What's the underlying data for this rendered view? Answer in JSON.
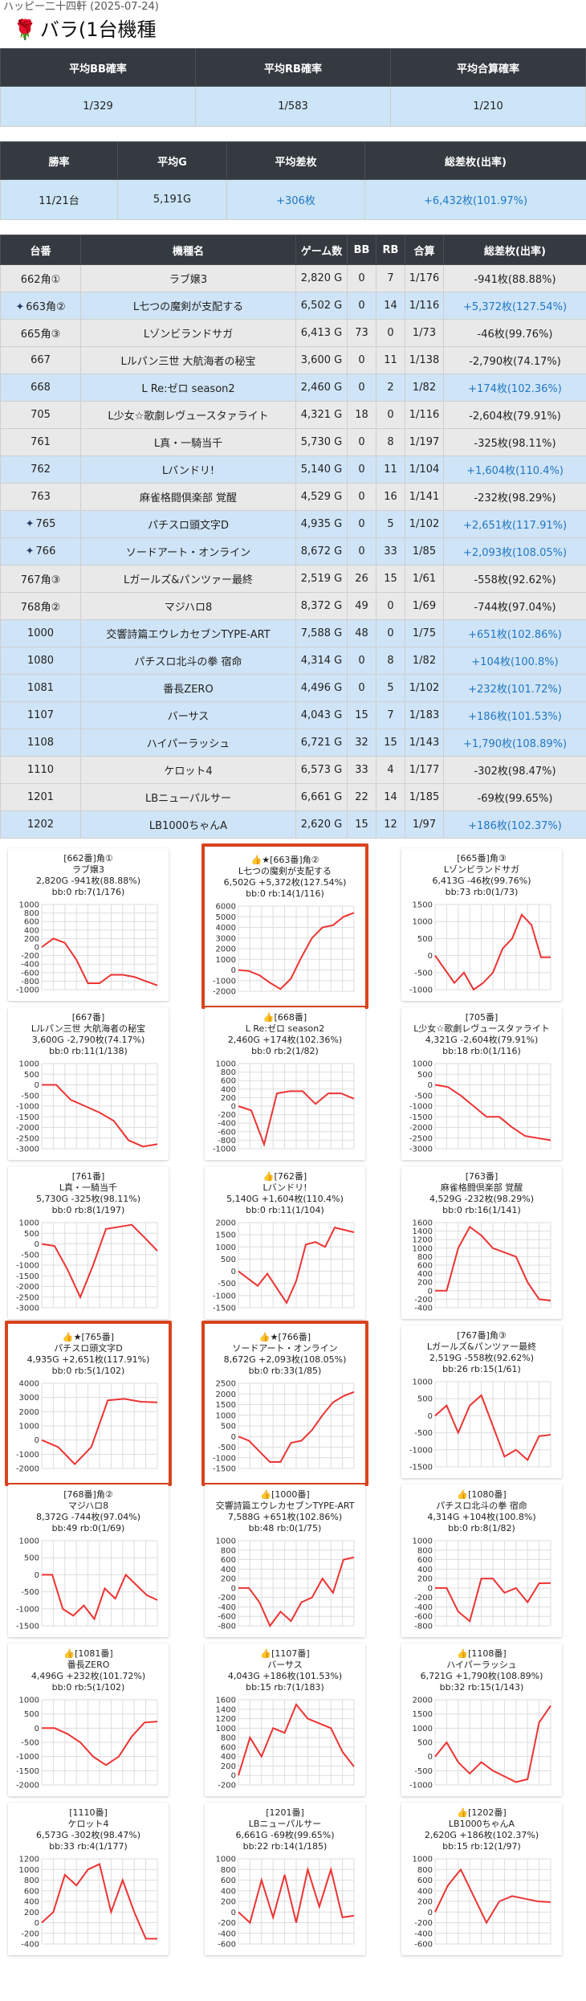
{
  "header": {
    "subtitle": "ハッピー二十四軒 (2025-07-24)",
    "title": "バラ(1台機種"
  },
  "summary1": {
    "headers": [
      "平均BB確率",
      "平均RB確率",
      "平均合算確率"
    ],
    "values": [
      "1/329",
      "1/583",
      "1/210"
    ]
  },
  "summary2": {
    "headers": [
      "勝率",
      "平均G",
      "平均差枚",
      "総差枚(出率)"
    ],
    "values": [
      "11/21台",
      "5,191G",
      "+306枚",
      "+6,432枚(101.97%)"
    ]
  },
  "table": {
    "headers": [
      "台番",
      "機種名",
      "ゲーム数",
      "BB",
      "RB",
      "合算",
      "総差枚(出率)"
    ],
    "rows": [
      {
        "no": "662角①",
        "name": "ラブ嬢3",
        "games": "2,820 G",
        "bb": "0",
        "rb": "7",
        "total": "1/176",
        "diff": "-941枚(88.88%)",
        "sparkle": false,
        "blue": false
      },
      {
        "no": "663角②",
        "name": "L七つの魔剣が支配する",
        "games": "6,502 G",
        "bb": "0",
        "rb": "14",
        "total": "1/116",
        "diff": "+5,372枚(127.54%)",
        "sparkle": true,
        "blue": true
      },
      {
        "no": "665角③",
        "name": "Lゾンビランドサガ",
        "games": "6,413 G",
        "bb": "73",
        "rb": "0",
        "total": "1/73",
        "diff": "-46枚(99.76%)",
        "sparkle": false,
        "blue": false
      },
      {
        "no": "667",
        "name": "Lルパン三世 大航海者の秘宝",
        "games": "3,600 G",
        "bb": "0",
        "rb": "11",
        "total": "1/138",
        "diff": "-2,790枚(74.17%)",
        "sparkle": false,
        "blue": false
      },
      {
        "no": "668",
        "name": "L Re:ゼロ season2",
        "games": "2,460 G",
        "bb": "0",
        "rb": "2",
        "total": "1/82",
        "diff": "+174枚(102.36%)",
        "sparkle": false,
        "blue": true
      },
      {
        "no": "705",
        "name": "L少女☆歌劇レヴュースタァライト",
        "games": "4,321 G",
        "bb": "18",
        "rb": "0",
        "total": "1/116",
        "diff": "-2,604枚(79.91%)",
        "sparkle": false,
        "blue": false
      },
      {
        "no": "761",
        "name": "L真・一騎当千",
        "games": "5,730 G",
        "bb": "0",
        "rb": "8",
        "total": "1/197",
        "diff": "-325枚(98.11%)",
        "sparkle": false,
        "blue": false
      },
      {
        "no": "762",
        "name": "Lバンドリ!",
        "games": "5,140 G",
        "bb": "0",
        "rb": "11",
        "total": "1/104",
        "diff": "+1,604枚(110.4%)",
        "sparkle": false,
        "blue": true
      },
      {
        "no": "763",
        "name": "麻雀格闘倶楽部 覚醒",
        "games": "4,529 G",
        "bb": "0",
        "rb": "16",
        "total": "1/141",
        "diff": "-232枚(98.29%)",
        "sparkle": false,
        "blue": false
      },
      {
        "no": "765",
        "name": "パチスロ頭文字D",
        "games": "4,935 G",
        "bb": "0",
        "rb": "5",
        "total": "1/102",
        "diff": "+2,651枚(117.91%)",
        "sparkle": true,
        "blue": true
      },
      {
        "no": "766",
        "name": "ソードアート・オンライン",
        "games": "8,672 G",
        "bb": "0",
        "rb": "33",
        "total": "1/85",
        "diff": "+2,093枚(108.05%)",
        "sparkle": true,
        "blue": true
      },
      {
        "no": "767角③",
        "name": "Lガールズ&パンツァー最終",
        "games": "2,519 G",
        "bb": "26",
        "rb": "15",
        "total": "1/61",
        "diff": "-558枚(92.62%)",
        "sparkle": false,
        "blue": false
      },
      {
        "no": "768角②",
        "name": "マジハロ8",
        "games": "8,372 G",
        "bb": "49",
        "rb": "0",
        "total": "1/69",
        "diff": "-744枚(97.04%)",
        "sparkle": false,
        "blue": false
      },
      {
        "no": "1000",
        "name": "交響詩篇エウレカセブンTYPE-ART",
        "games": "7,588 G",
        "bb": "48",
        "rb": "0",
        "total": "1/75",
        "diff": "+651枚(102.86%)",
        "sparkle": false,
        "blue": true
      },
      {
        "no": "1080",
        "name": "パチスロ北斗の拳 宿命",
        "games": "4,314 G",
        "bb": "0",
        "rb": "8",
        "total": "1/82",
        "diff": "+104枚(100.8%)",
        "sparkle": false,
        "blue": true
      },
      {
        "no": "1081",
        "name": "番長ZERO",
        "games": "4,496 G",
        "bb": "0",
        "rb": "5",
        "total": "1/102",
        "diff": "+232枚(101.72%)",
        "sparkle": false,
        "blue": true
      },
      {
        "no": "1107",
        "name": "バーサス",
        "games": "4,043 G",
        "bb": "15",
        "rb": "7",
        "total": "1/183",
        "diff": "+186枚(101.53%)",
        "sparkle": false,
        "blue": true
      },
      {
        "no": "1108",
        "name": "ハイパーラッシュ",
        "games": "6,721 G",
        "bb": "32",
        "rb": "15",
        "total": "1/143",
        "diff": "+1,790枚(108.89%)",
        "sparkle": false,
        "blue": true
      },
      {
        "no": "1110",
        "name": "ケロット4",
        "games": "6,573 G",
        "bb": "33",
        "rb": "4",
        "total": "1/177",
        "diff": "-302枚(98.47%)",
        "sparkle": false,
        "blue": false
      },
      {
        "no": "1201",
        "name": "LBニューパルサー",
        "games": "6,661 G",
        "bb": "22",
        "rb": "14",
        "total": "1/185",
        "diff": "-69枚(99.65%)",
        "sparkle": false,
        "blue": false
      },
      {
        "no": "1202",
        "name": "LB1000ちゃんA",
        "games": "2,620 G",
        "bb": "15",
        "rb": "12",
        "total": "1/97",
        "diff": "+186枚(102.37%)",
        "sparkle": false,
        "blue": true
      }
    ]
  },
  "chart_data": [
    {
      "type": "line",
      "l1": "[662番]角①",
      "l2": "ラブ嬢3",
      "l3": "2,820G -941枚(88.88%)",
      "l4": "bb:0 rb:7(1/176)",
      "thumb": false,
      "star": false,
      "highlight": false,
      "ticks": [
        "1000",
        "800",
        "600",
        "400",
        "200",
        "0",
        "-200",
        "-400",
        "-600",
        "-800",
        "-1000"
      ],
      "ylim": [
        -1000,
        1000
      ],
      "values": [
        0,
        200,
        100,
        -300,
        -850,
        -850,
        -650,
        -650,
        -700,
        -800,
        -900
      ]
    },
    {
      "type": "line",
      "l1": "[663番]角②",
      "l2": "L七つの魔剣が支配する",
      "l3": "6,502G +5,372枚(127.54%)",
      "l4": "bb:0 rb:14(1/116)",
      "thumb": true,
      "star": true,
      "highlight": true,
      "ticks": [
        "6000",
        "5000",
        "4000",
        "3000",
        "2000",
        "1000",
        "0",
        "-1000",
        "-2000"
      ],
      "ylim": [
        -2000,
        6000
      ],
      "values": [
        0,
        -100,
        -500,
        -1200,
        -1800,
        -800,
        1200,
        3000,
        4000,
        4200,
        5000,
        5372
      ]
    },
    {
      "type": "line",
      "l1": "[665番]角③",
      "l2": "Lゾンビランドサガ",
      "l3": "6,413G -46枚(99.76%)",
      "l4": "bb:73 rb:0(1/73)",
      "thumb": false,
      "star": false,
      "highlight": false,
      "ticks": [
        "1500",
        "1000",
        "500",
        "0",
        "-500",
        "-1000"
      ],
      "ylim": [
        -1000,
        1500
      ],
      "values": [
        0,
        -400,
        -800,
        -500,
        -1000,
        -800,
        -500,
        200,
        500,
        1200,
        900,
        -50,
        -46
      ]
    },
    {
      "type": "line",
      "l1": "[667番]",
      "l2": "Lルパン三世 大航海者の秘宝",
      "l3": "3,600G -2,790枚(74.17%)",
      "l4": "bb:0 rb:11(1/138)",
      "thumb": false,
      "star": false,
      "highlight": false,
      "ticks": [
        "1000",
        "500",
        "0",
        "-500",
        "-1000",
        "-1500",
        "-2000",
        "-2500",
        "-3000"
      ],
      "ylim": [
        -3000,
        1000
      ],
      "values": [
        0,
        0,
        -700,
        -1000,
        -1300,
        -1700,
        -2600,
        -2900,
        -2790
      ]
    },
    {
      "type": "line",
      "l1": "[668番]",
      "l2": "L Re:ゼロ season2",
      "l3": "2,460G +174枚(102.36%)",
      "l4": "bb:0 rb:2(1/82)",
      "thumb": true,
      "star": false,
      "highlight": false,
      "ticks": [
        "1000",
        "800",
        "600",
        "400",
        "200",
        "0",
        "-200",
        "-400",
        "-600",
        "-800",
        "-1000"
      ],
      "ylim": [
        -1000,
        1000
      ],
      "values": [
        0,
        -100,
        -900,
        300,
        350,
        350,
        50,
        300,
        300,
        174
      ]
    },
    {
      "type": "line",
      "l1": "[705番]",
      "l2": "L少女☆歌劇レヴュースタァライト",
      "l3": "4,321G -2,604枚(79.91%)",
      "l4": "bb:18 rb:0(1/116)",
      "thumb": false,
      "star": false,
      "highlight": false,
      "ticks": [
        "1000",
        "500",
        "0",
        "-500",
        "-1000",
        "-1500",
        "-2000",
        "-2500",
        "-3000"
      ],
      "ylim": [
        -3000,
        1000
      ],
      "values": [
        0,
        -100,
        -500,
        -1000,
        -1500,
        -1500,
        -2000,
        -2400,
        -2500,
        -2604
      ]
    },
    {
      "type": "line",
      "l1": "[761番]",
      "l2": "L真・一騎当千",
      "l3": "5,730G -325枚(98.11%)",
      "l4": "bb:0 rb:8(1/197)",
      "thumb": false,
      "star": false,
      "highlight": false,
      "ticks": [
        "1000",
        "500",
        "0",
        "-500",
        "-1000",
        "-1500",
        "-2000",
        "-2500",
        "-3000"
      ],
      "ylim": [
        -3000,
        1000
      ],
      "values": [
        0,
        -100,
        -1200,
        -2500,
        -1000,
        700,
        800,
        900,
        300,
        -325
      ]
    },
    {
      "type": "line",
      "l1": "[762番]",
      "l2": "Lバンドリ!",
      "l3": "5,140G +1,604枚(110.4%)",
      "l4": "bb:0 rb:11(1/104)",
      "thumb": true,
      "star": false,
      "highlight": false,
      "ticks": [
        "2000",
        "1500",
        "1000",
        "500",
        "0",
        "-500",
        "-1000",
        "-1500"
      ],
      "ylim": [
        -1500,
        2000
      ],
      "values": [
        0,
        -300,
        -600,
        -100,
        -700,
        -1300,
        -400,
        1100,
        1200,
        1000,
        1800,
        1700,
        1604
      ]
    },
    {
      "type": "line",
      "l1": "[763番]",
      "l2": "麻雀格闘倶楽部 覚醒",
      "l3": "4,529G -232枚(98.29%)",
      "l4": "bb:0 rb:16(1/141)",
      "thumb": false,
      "star": false,
      "highlight": false,
      "ticks": [
        "1600",
        "1400",
        "1200",
        "1000",
        "800",
        "600",
        "400",
        "200",
        "0",
        "-200",
        "-400"
      ],
      "ylim": [
        -400,
        1600
      ],
      "values": [
        0,
        0,
        1000,
        1500,
        1300,
        1000,
        900,
        800,
        200,
        -200,
        -232
      ]
    },
    {
      "type": "line",
      "l1": "[765番]",
      "l2": "パチスロ頭文字D",
      "l3": "4,935G +2,651枚(117.91%)",
      "l4": "bb:0 rb:5(1/102)",
      "thumb": true,
      "star": true,
      "highlight": true,
      "ticks": [
        "4000",
        "3000",
        "2000",
        "1000",
        "0",
        "-1000",
        "-2000"
      ],
      "ylim": [
        -2000,
        4000
      ],
      "values": [
        0,
        -500,
        -1700,
        -500,
        2800,
        2900,
        2700,
        2651
      ]
    },
    {
      "type": "line",
      "l1": "[766番]",
      "l2": "ソードアート・オンライン",
      "l3": "8,672G +2,093枚(108.05%)",
      "l4": "bb:0 rb:33(1/85)",
      "thumb": true,
      "star": true,
      "highlight": true,
      "ticks": [
        "2500",
        "2000",
        "1500",
        "1000",
        "500",
        "0",
        "-500",
        "-1000",
        "-1500"
      ],
      "ylim": [
        -1500,
        2500
      ],
      "values": [
        0,
        -200,
        -700,
        -1200,
        -1200,
        -300,
        -200,
        300,
        1000,
        1600,
        1900,
        2093
      ]
    },
    {
      "type": "line",
      "l1": "[767番]角③",
      "l2": "Lガールズ&パンツァー最終",
      "l3": "2,519G -558枚(92.62%)",
      "l4": "bb:26 rb:15(1/61)",
      "thumb": false,
      "star": false,
      "highlight": false,
      "ticks": [
        "1000",
        "500",
        "0",
        "-500",
        "-1000",
        "-1500"
      ],
      "ylim": [
        -1500,
        1000
      ],
      "values": [
        0,
        300,
        -500,
        300,
        600,
        -300,
        -1200,
        -1000,
        -1300,
        -600,
        -558
      ]
    },
    {
      "type": "line",
      "l1": "[768番]角②",
      "l2": "マジハロ8",
      "l3": "8,372G -744枚(97.04%)",
      "l4": "bb:49 rb:0(1/69)",
      "thumb": false,
      "star": false,
      "highlight": false,
      "ticks": [
        "1000",
        "500",
        "0",
        "-500",
        "-1000",
        "-1500"
      ],
      "ylim": [
        -1500,
        1000
      ],
      "values": [
        0,
        0,
        -1000,
        -1200,
        -900,
        -1300,
        -400,
        -700,
        0,
        -300,
        -600,
        -744
      ]
    },
    {
      "type": "line",
      "l1": "[1000番]",
      "l2": "交響詩篇エウレカセブンTYPE-ART",
      "l3": "7,588G +651枚(102.86%)",
      "l4": "bb:48 rb:0(1/75)",
      "thumb": true,
      "star": false,
      "highlight": false,
      "ticks": [
        "1000",
        "800",
        "600",
        "400",
        "200",
        "0",
        "-200",
        "-400",
        "-600",
        "-800"
      ],
      "ylim": [
        -800,
        1000
      ],
      "values": [
        0,
        0,
        -300,
        -800,
        -500,
        -700,
        -300,
        -200,
        200,
        -100,
        600,
        651
      ]
    },
    {
      "type": "line",
      "l1": "[1080番]",
      "l2": "パチスロ北斗の拳 宿命",
      "l3": "4,314G +104枚(100.8%)",
      "l4": "bb:0 rb:8(1/82)",
      "thumb": true,
      "star": false,
      "highlight": false,
      "ticks": [
        "1000",
        "800",
        "600",
        "400",
        "200",
        "0",
        "-200",
        "-400",
        "-600",
        "-800"
      ],
      "ylim": [
        -800,
        1000
      ],
      "values": [
        0,
        0,
        -500,
        -700,
        200,
        200,
        -100,
        0,
        -300,
        100,
        104
      ]
    },
    {
      "type": "line",
      "l1": "[1081番]",
      "l2": "番長ZERO",
      "l3": "4,496G +232枚(101.72%)",
      "l4": "bb:0 rb:5(1/102)",
      "thumb": true,
      "star": false,
      "highlight": false,
      "ticks": [
        "1000",
        "500",
        "0",
        "-500",
        "-1000",
        "-1500",
        "-2000"
      ],
      "ylim": [
        -2000,
        1000
      ],
      "values": [
        0,
        0,
        -200,
        -500,
        -1000,
        -1300,
        -1000,
        -300,
        200,
        232
      ]
    },
    {
      "type": "line",
      "l1": "[1107番]",
      "l2": "バーサス",
      "l3": "4,043G +186枚(101.53%)",
      "l4": "bb:15 rb:7(1/183)",
      "thumb": true,
      "star": false,
      "highlight": false,
      "ticks": [
        "1600",
        "1400",
        "1200",
        "1000",
        "800",
        "600",
        "400",
        "200",
        "0",
        "-200"
      ],
      "ylim": [
        -200,
        1600
      ],
      "values": [
        0,
        800,
        400,
        1000,
        900,
        1500,
        1200,
        1100,
        1000,
        500,
        186
      ]
    },
    {
      "type": "line",
      "l1": "[1108番]",
      "l2": "ハイパーラッシュ",
      "l3": "6,721G +1,790枚(108.89%)",
      "l4": "bb:32 rb:15(1/143)",
      "thumb": true,
      "star": false,
      "highlight": false,
      "ticks": [
        "2000",
        "1500",
        "1000",
        "500",
        "0",
        "-500",
        "-1000"
      ],
      "ylim": [
        -1000,
        2000
      ],
      "values": [
        0,
        500,
        -200,
        -600,
        -200,
        -500,
        -700,
        -900,
        -800,
        1200,
        1790
      ]
    },
    {
      "type": "line",
      "l1": "[1110番]",
      "l2": "ケロット4",
      "l3": "6,573G -302枚(98.47%)",
      "l4": "bb:33 rb:4(1/177)",
      "thumb": false,
      "star": false,
      "highlight": false,
      "ticks": [
        "1200",
        "1000",
        "800",
        "600",
        "400",
        "200",
        "0",
        "-200",
        "-400"
      ],
      "ylim": [
        -400,
        1200
      ],
      "values": [
        0,
        200,
        900,
        700,
        1000,
        1100,
        200,
        800,
        200,
        -300,
        -302
      ]
    },
    {
      "type": "line",
      "l1": "[1201番]",
      "l2": "LBニューパルサー",
      "l3": "6,661G -69枚(99.65%)",
      "l4": "bb:22 rb:14(1/185)",
      "thumb": false,
      "star": false,
      "highlight": false,
      "ticks": [
        "1000",
        "800",
        "600",
        "400",
        "200",
        "0",
        "-200",
        "-400",
        "-600"
      ],
      "ylim": [
        -600,
        1000
      ],
      "values": [
        0,
        -200,
        600,
        -100,
        700,
        -200,
        800,
        100,
        800,
        -100,
        -69
      ]
    },
    {
      "type": "line",
      "l1": "[1202番]",
      "l2": "LB1000ちゃんA",
      "l3": "2,620G +186枚(102.37%)",
      "l4": "bb:15 rb:12(1/97)",
      "thumb": true,
      "star": false,
      "highlight": false,
      "ticks": [
        "1000",
        "800",
        "600",
        "400",
        "200",
        "0",
        "-200",
        "-400",
        "-600"
      ],
      "ylim": [
        -600,
        1000
      ],
      "values": [
        0,
        500,
        800,
        300,
        -200,
        200,
        300,
        250,
        200,
        186
      ]
    }
  ],
  "icons": {
    "rose": "rose-icon",
    "sparkle": "sparkle-icon",
    "thumb": "thumbs-up-icon",
    "star": "star-icon"
  },
  "colors": {
    "header_bg": "#343a40",
    "row_blue": "#cfe4f6",
    "row_gray": "#e9e9e9",
    "line": "#ee3333",
    "highlight": "#d9431d",
    "positive": "#2177c4"
  }
}
